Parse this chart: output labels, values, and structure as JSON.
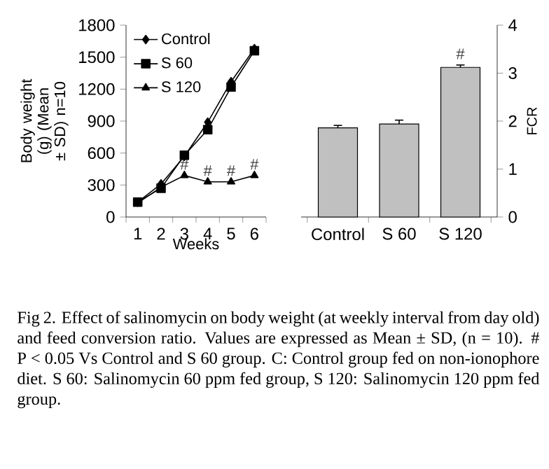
{
  "chart_data": [
    {
      "type": "line",
      "xlabel": "Weeks",
      "ylabel": "Body weight (g) (Mean ± SD) n=10",
      "categories": [
        "1",
        "2",
        "3",
        "4",
        "5",
        "6"
      ],
      "ylim": [
        0,
        1800
      ],
      "yticks": [
        0,
        300,
        600,
        900,
        1200,
        1500,
        1800
      ],
      "legend": "top left",
      "line_style": "solid",
      "series": [
        {
          "name": "Control",
          "color": "#000000",
          "marker": "diamond",
          "values": [
            140,
            310,
            570,
            890,
            1270,
            1580
          ]
        },
        {
          "name": "S 60",
          "color": "#000000",
          "marker": "square",
          "values": [
            140,
            270,
            580,
            820,
            1220,
            1560
          ]
        },
        {
          "name": "S 120",
          "color": "#000000",
          "marker": "triangle",
          "values": [
            130,
            280,
            390,
            330,
            330,
            390
          ]
        }
      ],
      "annotations": [
        {
          "text": "#",
          "x": "3",
          "y": 390
        },
        {
          "text": "#",
          "x": "4",
          "y": 330
        },
        {
          "text": "#",
          "x": "5",
          "y": 330
        },
        {
          "text": "#",
          "x": "6",
          "y": 390
        },
        "Fig 2. Effect of salinomycin on body weight (at weekly interval from day old) and feed conversion ratio. Values are expressed as Mean ± SD, (n = 10). # P < 0.05 Vs Control and S 60 group. C: Control group fed on non-ionophore diet. S 60: Salinomycin 60 ppm fed group, S 120: Salinomycin 120 ppm fed group."
      ]
    },
    {
      "type": "bar",
      "ylabel": "FCR",
      "categories": [
        "Control",
        "S 60",
        "S 120"
      ],
      "ylim": [
        0,
        4
      ],
      "yticks": [
        0,
        1,
        2,
        3,
        4
      ],
      "series": [
        {
          "color": "#c0c0c0",
          "values": [
            1.86,
            1.94,
            3.12
          ],
          "errors": [
            0.05,
            0.08,
            0.05
          ]
        }
      ],
      "annotations": [
        {
          "text": "#",
          "x": "S 120",
          "y": 3.17
        }
      ]
    }
  ]
}
